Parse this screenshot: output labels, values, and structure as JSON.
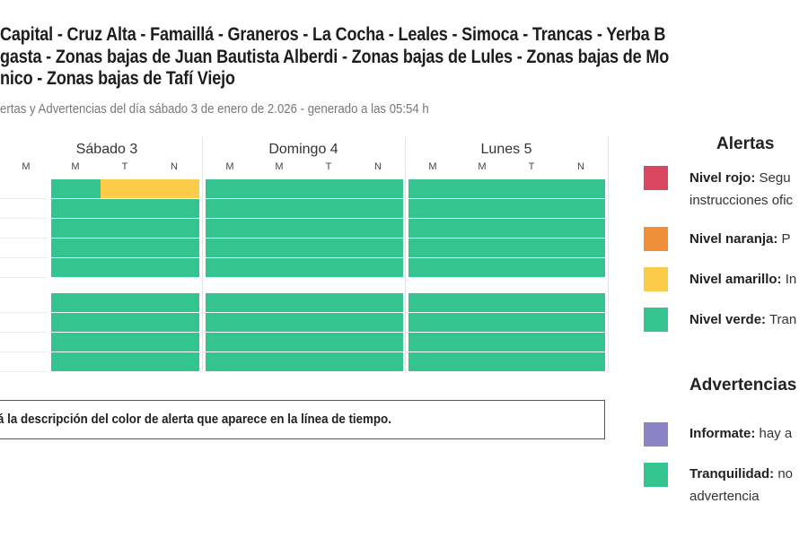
{
  "header": {
    "title_lines": [
      "Capital - Cruz Alta - Famaillá - Graneros - La Cocha - Leales - Simoca - Trancas - Yerba B",
      "gasta - Zonas bajas de Juan Bautista Alberdi - Zonas bajas de Lules - Zonas bajas de Mo",
      "nico - Zonas bajas de Tafí Viejo"
    ],
    "subtitle": "ertas y Advertencias del día sábado 3 de enero de 2.026 - generado a las 05:54 h"
  },
  "timeline": {
    "days": [
      {
        "label": "Sábado 3",
        "slots": [
          "M",
          "M",
          "T",
          "N"
        ]
      },
      {
        "label": "Domingo 4",
        "slots": [
          "M",
          "M",
          "T",
          "N"
        ]
      },
      {
        "label": "Lunes 5",
        "slots": [
          "M",
          "M",
          "T",
          "N"
        ]
      }
    ],
    "groups": [
      {
        "rows": [
          [
            "none",
            "verde",
            "amarillo",
            "amarillo",
            "verde",
            "verde",
            "verde",
            "verde",
            "verde",
            "verde",
            "verde",
            "verde"
          ],
          [
            "none",
            "verde",
            "verde",
            "verde",
            "verde",
            "verde",
            "verde",
            "verde",
            "verde",
            "verde",
            "verde",
            "verde"
          ],
          [
            "none",
            "verde",
            "verde",
            "verde",
            "verde",
            "verde",
            "verde",
            "verde",
            "verde",
            "verde",
            "verde",
            "verde"
          ],
          [
            "none",
            "verde",
            "verde",
            "verde",
            "verde",
            "verde",
            "verde",
            "verde",
            "verde",
            "verde",
            "verde",
            "verde"
          ],
          [
            "none",
            "verde",
            "verde",
            "verde",
            "verde",
            "verde",
            "verde",
            "verde",
            "verde",
            "verde",
            "verde",
            "verde"
          ]
        ]
      },
      {
        "rows": [
          [
            "none",
            "verde",
            "verde",
            "verde",
            "verde",
            "verde",
            "verde",
            "verde",
            "verde",
            "verde",
            "verde",
            "verde"
          ],
          [
            "none",
            "verde",
            "verde",
            "verde",
            "verde",
            "verde",
            "verde",
            "verde",
            "verde",
            "verde",
            "verde",
            "verde"
          ],
          [
            "none",
            "verde",
            "verde",
            "verde",
            "verde",
            "verde",
            "verde",
            "verde",
            "verde",
            "verde",
            "verde",
            "verde"
          ],
          [
            "none",
            "verde",
            "verde",
            "verde",
            "verde",
            "verde",
            "verde",
            "verde",
            "verde",
            "verde",
            "verde",
            "verde"
          ]
        ]
      }
    ],
    "description": "á la descripción del color de alerta que aparece en la línea de tiempo."
  },
  "colors": {
    "rojo": "#d9485f",
    "naranja": "#ef8f3a",
    "amarillo": "#fccb4a",
    "verde": "#34c48f",
    "violeta": "#8a84c6",
    "none": "transparent"
  },
  "legend": {
    "alertas_title": "Alertas",
    "alertas": [
      {
        "name": "Nivel rojo:",
        "text": "Segu",
        "text2": "instrucciones ofic",
        "color": "rojo"
      },
      {
        "name": "Nivel naranja:",
        "text": "P",
        "color": "naranja"
      },
      {
        "name": "Nivel amarillo:",
        "text": "In",
        "color": "amarillo"
      },
      {
        "name": "Nivel verde:",
        "text": "Tran",
        "color": "verde"
      }
    ],
    "advertencias_title": "Advertencias",
    "advertencias": [
      {
        "name": "Informate:",
        "text": "hay a",
        "color": "violeta"
      },
      {
        "name": "Tranquilidad:",
        "text": "no",
        "text2": "advertencia",
        "color": "verde"
      }
    ]
  }
}
